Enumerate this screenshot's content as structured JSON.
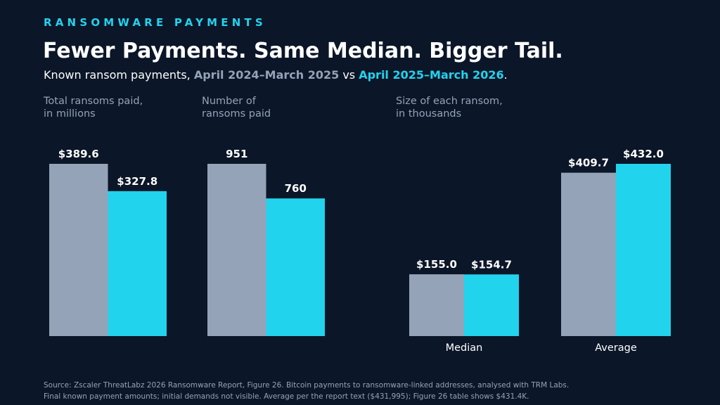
{
  "header": {
    "eyebrow": "RANSOMWARE PAYMENTS",
    "title": "Fewer Payments. Same Median. Bigger Tail.",
    "subtitle_prefix": "Known ransom payments, ",
    "period_1": "April 2024–March 2025",
    "subtitle_mid": " vs ",
    "period_2": "April 2025–March 2026",
    "subtitle_suffix": "."
  },
  "colors": {
    "background": "#0b1628",
    "period_1": "#94a3b8",
    "period_2": "#22d3ee",
    "text": "#ffffff",
    "muted": "#94a3b8"
  },
  "chart_data": [
    {
      "type": "bar",
      "panel_label_lines": [
        "Total ransoms paid,",
        "in millions"
      ],
      "categories": [
        ""
      ],
      "series": [
        {
          "name": "April 2024–March 2025",
          "values": [
            389.6
          ],
          "labels": [
            "$389.6"
          ]
        },
        {
          "name": "April 2025–March 2026",
          "values": [
            327.8
          ],
          "labels": [
            "$327.8"
          ]
        }
      ]
    },
    {
      "type": "bar",
      "panel_label_lines": [
        "Number of",
        "ransoms paid"
      ],
      "categories": [
        ""
      ],
      "series": [
        {
          "name": "April 2024–March 2025",
          "values": [
            951
          ],
          "labels": [
            "951"
          ]
        },
        {
          "name": "April 2025–March 2026",
          "values": [
            760
          ],
          "labels": [
            "760"
          ]
        }
      ]
    },
    {
      "type": "bar",
      "panel_label_lines": [
        "Size of each ransom,",
        "in thousands"
      ],
      "categories": [
        "Median",
        "Average"
      ],
      "series": [
        {
          "name": "April 2024–March 2025",
          "values": [
            155.0,
            409.7
          ],
          "labels": [
            "$155.0",
            "$409.7"
          ]
        },
        {
          "name": "April 2025–March 2026",
          "values": [
            154.7,
            432.0
          ],
          "labels": [
            "$154.7",
            "$432.0"
          ]
        }
      ]
    }
  ],
  "source": {
    "line1": "Source: Zscaler ThreatLabz 2026 Ransomware Report, Figure 26. Bitcoin payments to ransomware-linked addresses, analysed with TRM Labs.",
    "line2": "Final known payment amounts; initial demands not visible. Average per the report text ($431,995); Figure 26 table shows $431.4K."
  }
}
